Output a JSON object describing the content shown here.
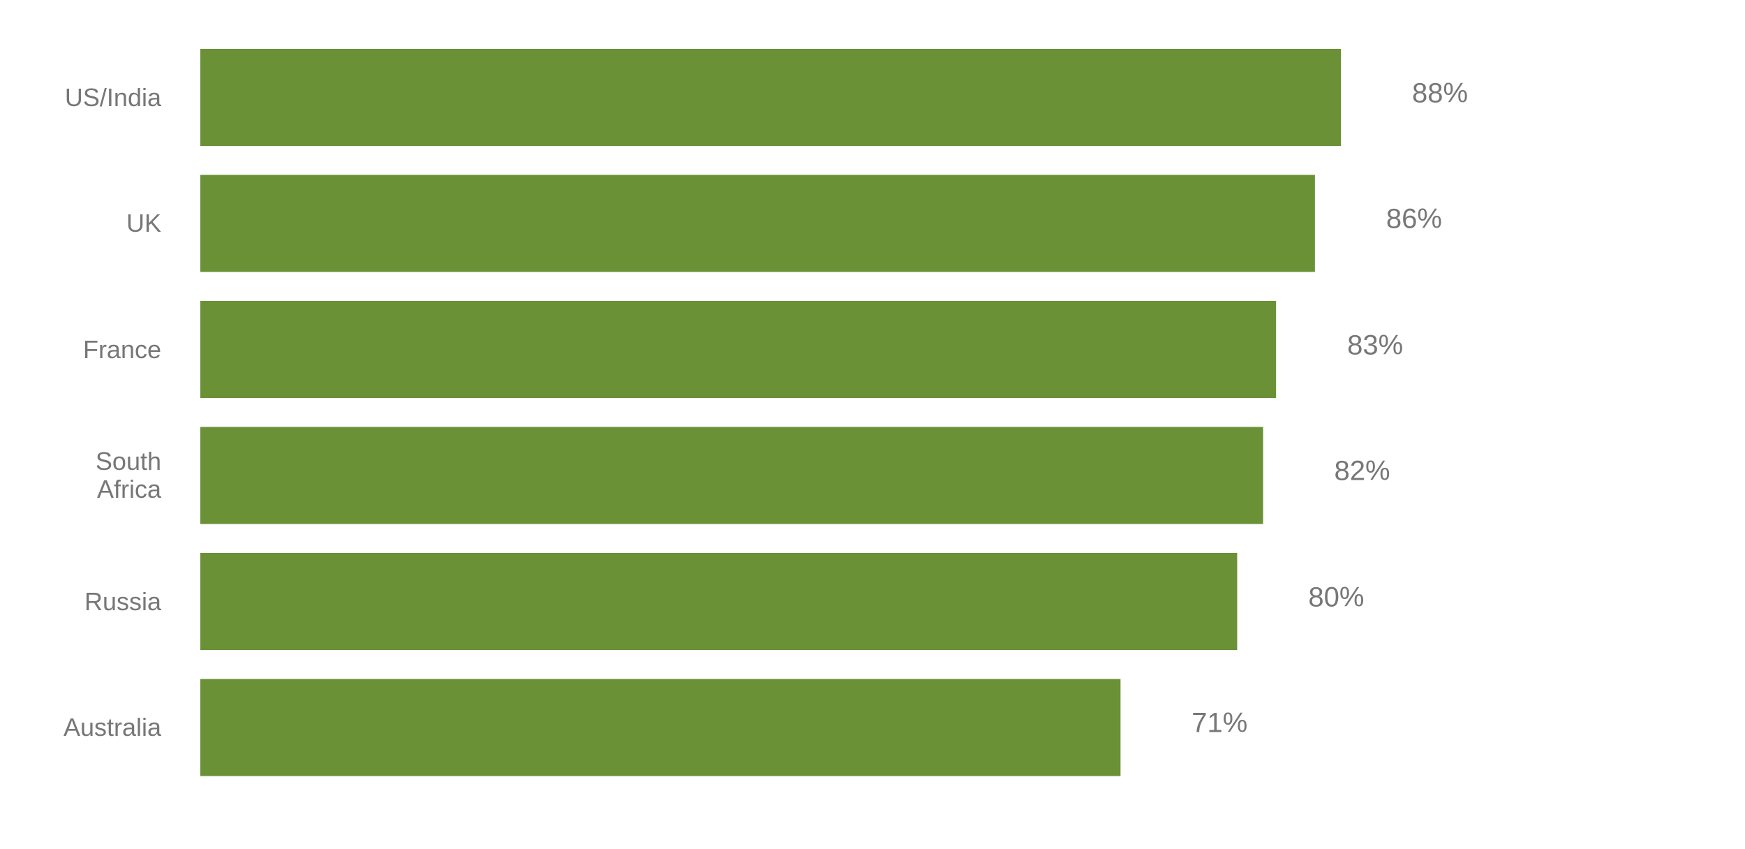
{
  "chart_data": {
    "type": "bar",
    "orientation": "horizontal",
    "categories": [
      "US/India",
      "UK",
      "France",
      "South Africa",
      "Russia",
      "Australia"
    ],
    "values": [
      88,
      86,
      83,
      82,
      80,
      71
    ],
    "value_labels": [
      "88%",
      "86%",
      "83%",
      "82%",
      "80%",
      "71%"
    ],
    "color": "#6a9136"
  }
}
